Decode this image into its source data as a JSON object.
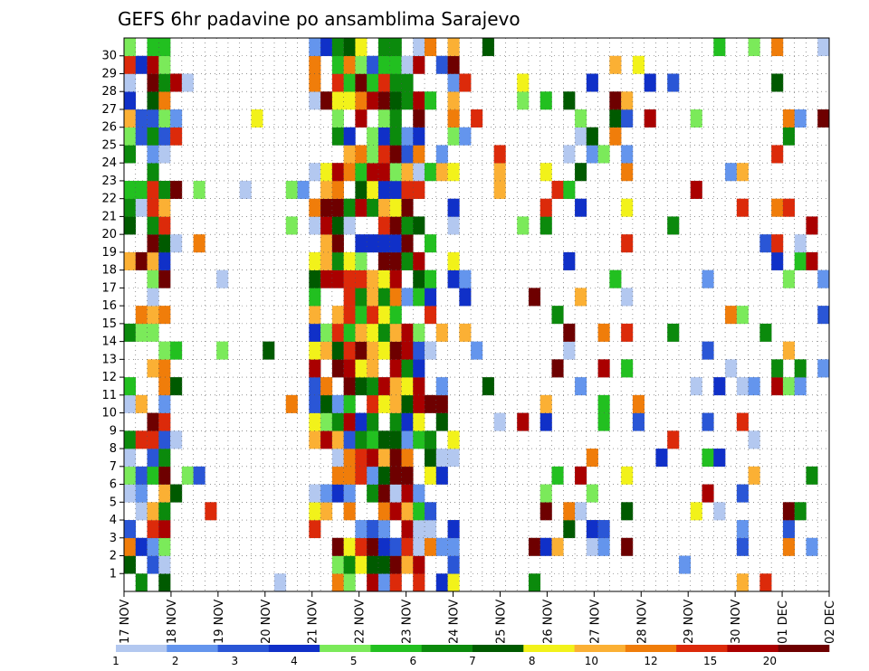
{
  "chart_data": {
    "type": "heatmap",
    "title": "GEFS 6hr padavine po ansamblima Sarajevo",
    "xlabel": "",
    "ylabel": "",
    "y_ticks": [
      "1",
      "2",
      "3",
      "4",
      "5",
      "6",
      "7",
      "8",
      "9",
      "10",
      "11",
      "12",
      "13",
      "14",
      "15",
      "16",
      "17",
      "18",
      "19",
      "20",
      "21",
      "22",
      "23",
      "24",
      "25",
      "26",
      "27",
      "28",
      "29",
      "30"
    ],
    "x_ticks": [
      "17 NOV",
      "18 NOV",
      "19 NOV",
      "20 NOV",
      "21 NOV",
      "22 NOV",
      "23 NOV",
      "24 NOV",
      "25 NOV",
      "26 NOV",
      "27 NOV",
      "28 NOV",
      "29 NOV",
      "30 NOV",
      "01 DEC",
      "02 DEC"
    ],
    "steps_per_day": 4,
    "x_columns": 61,
    "y_rows": 31,
    "grid": "dotted",
    "legend": {
      "placement": "bottom",
      "levels": [
        "1",
        "2",
        "3",
        "4",
        "5",
        "6",
        "7",
        "8",
        "10",
        "12",
        "15",
        "20"
      ],
      "colors": [
        "#b3c8f0",
        "#6495ed",
        "#2a56d6",
        "#1030c8",
        "#7bea5a",
        "#22c020",
        "#0b8a0c",
        "#005a00",
        "#f2f21a",
        "#fbb034",
        "#f07d0a",
        "#dc2a0a",
        "#aa0000",
        "#6e0000"
      ]
    },
    "rows": [
      "     1                  2    6 1 1                                 2 1                          ",
      " 22 3              4  3 6 3 1 1                                  5  5     ",
      "  1 1    1         2 1 2 3 4  1   2 3                   1 2  1 4 1 2                 ",
      "  3 2              2 6 3 2 1 5 1 2 1 2 1                  2 1           6 2 ",
      "  1 2              2 7 5 1 3 2  5 1 1               3 3   ",
      "  5 7              1 5 8 1 6 2 2 1                  3 3 3 2 ",
      "  1 5               2 1 4  3 1     2 3   1              1 3   ",
      "  3 8 1            2 1 1 9 8 1 1 9 1                  1 1 2                  ",
      "  3 8 9            8 9 1 6 1 1 1                1 3 1         3 1                     ",
      "  2 1               1 7   2 3 1                                   1                   ",
      "  3 3               1 2 1 2 1   2                                                     ",
      "   3 3               2 1 6 2 2 1                                                      ",
      "  2 3               1 5 7 1                                                           ",
      "   1 2               2 1                                                              ",
      "  1 3 5             2 1 5 2 1 2 2 2                                                   "
    ]
  }
}
